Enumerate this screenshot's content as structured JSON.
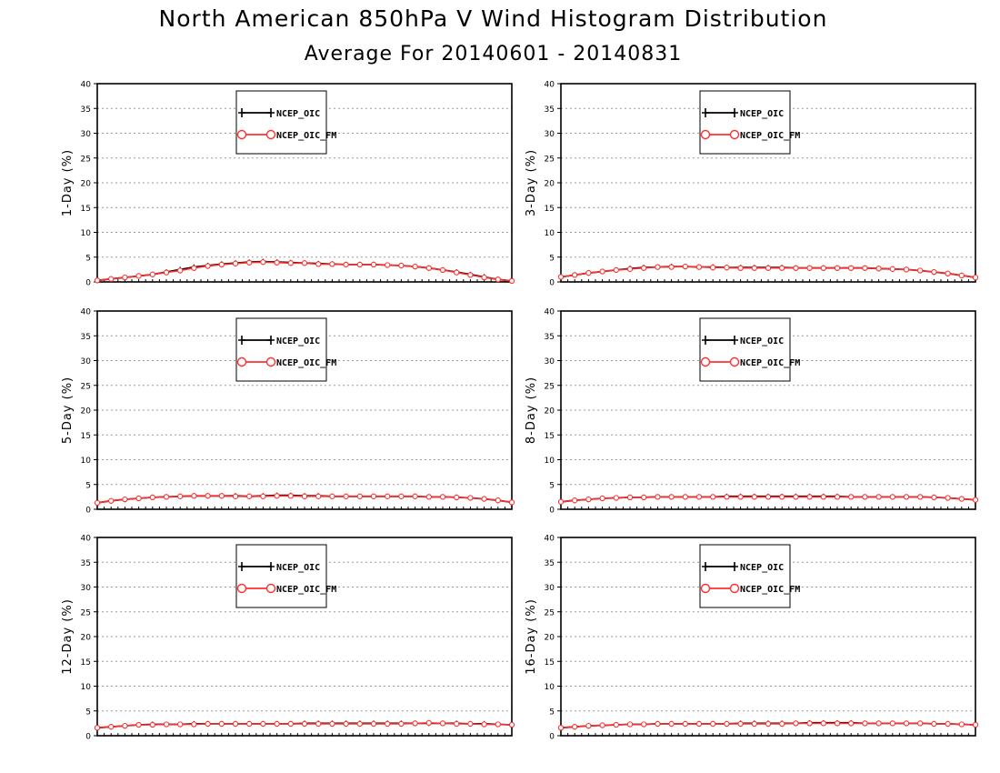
{
  "title": "North American 850hPa V Wind Histogram Distribution",
  "subtitle": "Average For 20140601 - 20140831",
  "colors": {
    "series1": "#000000",
    "series2": "#ff3030",
    "grid": "#9a9a9a"
  },
  "chart_data": [
    {
      "type": "line",
      "ylabel": "1-Day (%)",
      "ylim": [
        0,
        40
      ],
      "yticks": [
        "0",
        "5",
        "10",
        "15",
        "20",
        "25",
        "30",
        "35",
        "40"
      ],
      "grid": true,
      "legend": "top-center",
      "series": [
        {
          "name": "NCEP_OIC",
          "marker": "plus",
          "values": [
            0.3,
            0.6,
            0.9,
            1.2,
            1.5,
            2.0,
            2.5,
            3.0,
            3.3,
            3.6,
            3.8,
            4.0,
            4.1,
            4.0,
            3.9,
            3.8,
            3.7,
            3.6,
            3.5,
            3.5,
            3.5,
            3.4,
            3.3,
            3.1,
            2.8,
            2.4,
            2.0,
            1.5,
            1.0,
            0.5,
            0.2
          ]
        },
        {
          "name": "NCEP_OIC_FM",
          "marker": "circle",
          "values": [
            0.3,
            0.6,
            0.9,
            1.2,
            1.5,
            1.9,
            2.3,
            2.8,
            3.2,
            3.5,
            3.7,
            3.9,
            4.0,
            3.9,
            3.8,
            3.8,
            3.6,
            3.6,
            3.5,
            3.5,
            3.5,
            3.4,
            3.3,
            3.1,
            2.8,
            2.4,
            1.9,
            1.4,
            0.9,
            0.5,
            0.2
          ]
        }
      ]
    },
    {
      "type": "line",
      "ylabel": "3-Day (%)",
      "ylim": [
        0,
        40
      ],
      "yticks": [
        "0",
        "5",
        "10",
        "15",
        "20",
        "25",
        "30",
        "35",
        "40"
      ],
      "grid": true,
      "legend": "top-center",
      "series": [
        {
          "name": "NCEP_OIC",
          "marker": "plus",
          "values": [
            1.0,
            1.4,
            1.8,
            2.1,
            2.4,
            2.7,
            2.9,
            3.0,
            3.1,
            3.1,
            3.0,
            3.0,
            2.9,
            2.9,
            2.9,
            2.9,
            2.9,
            2.8,
            2.8,
            2.8,
            2.8,
            2.8,
            2.8,
            2.7,
            2.6,
            2.5,
            2.3,
            2.0,
            1.7,
            1.3,
            0.9
          ]
        },
        {
          "name": "NCEP_OIC_FM",
          "marker": "circle",
          "values": [
            1.0,
            1.4,
            1.8,
            2.1,
            2.4,
            2.6,
            2.8,
            3.0,
            3.0,
            3.1,
            3.0,
            2.9,
            2.9,
            2.8,
            2.8,
            2.8,
            2.8,
            2.8,
            2.8,
            2.8,
            2.8,
            2.8,
            2.8,
            2.7,
            2.6,
            2.5,
            2.3,
            2.0,
            1.7,
            1.3,
            0.9
          ]
        }
      ]
    },
    {
      "type": "line",
      "ylabel": "5-Day (%)",
      "ylim": [
        0,
        40
      ],
      "yticks": [
        "0",
        "5",
        "10",
        "15",
        "20",
        "25",
        "30",
        "35",
        "40"
      ],
      "grid": true,
      "legend": "top-center",
      "series": [
        {
          "name": "NCEP_OIC",
          "marker": "plus",
          "values": [
            1.3,
            1.7,
            2.0,
            2.2,
            2.4,
            2.5,
            2.6,
            2.7,
            2.7,
            2.7,
            2.7,
            2.6,
            2.7,
            2.8,
            2.8,
            2.7,
            2.7,
            2.6,
            2.6,
            2.6,
            2.6,
            2.6,
            2.6,
            2.6,
            2.5,
            2.5,
            2.4,
            2.3,
            2.1,
            1.8,
            1.4
          ]
        },
        {
          "name": "NCEP_OIC_FM",
          "marker": "circle",
          "values": [
            1.3,
            1.7,
            2.0,
            2.2,
            2.4,
            2.5,
            2.6,
            2.7,
            2.7,
            2.7,
            2.6,
            2.6,
            2.6,
            2.7,
            2.7,
            2.6,
            2.6,
            2.6,
            2.6,
            2.6,
            2.6,
            2.6,
            2.6,
            2.6,
            2.5,
            2.5,
            2.4,
            2.3,
            2.1,
            1.8,
            1.4
          ]
        }
      ]
    },
    {
      "type": "line",
      "ylabel": "8-Day (%)",
      "ylim": [
        0,
        40
      ],
      "yticks": [
        "0",
        "5",
        "10",
        "15",
        "20",
        "25",
        "30",
        "35",
        "40"
      ],
      "grid": true,
      "legend": "top-center",
      "series": [
        {
          "name": "NCEP_OIC",
          "marker": "plus",
          "values": [
            1.5,
            1.8,
            2.0,
            2.2,
            2.3,
            2.4,
            2.4,
            2.5,
            2.5,
            2.5,
            2.5,
            2.5,
            2.6,
            2.6,
            2.6,
            2.6,
            2.6,
            2.6,
            2.6,
            2.6,
            2.6,
            2.5,
            2.5,
            2.5,
            2.5,
            2.5,
            2.5,
            2.4,
            2.3,
            2.1,
            1.9
          ]
        },
        {
          "name": "NCEP_OIC_FM",
          "marker": "circle",
          "values": [
            1.5,
            1.8,
            2.0,
            2.2,
            2.3,
            2.4,
            2.4,
            2.5,
            2.5,
            2.5,
            2.5,
            2.5,
            2.5,
            2.5,
            2.5,
            2.5,
            2.5,
            2.5,
            2.5,
            2.5,
            2.5,
            2.5,
            2.5,
            2.5,
            2.5,
            2.5,
            2.5,
            2.4,
            2.3,
            2.1,
            1.9
          ]
        }
      ]
    },
    {
      "type": "line",
      "ylabel": "12-Day (%)",
      "ylim": [
        0,
        40
      ],
      "yticks": [
        "0",
        "5",
        "10",
        "15",
        "20",
        "25",
        "30",
        "35",
        "40"
      ],
      "grid": true,
      "legend": "top-center",
      "series": [
        {
          "name": "NCEP_OIC",
          "marker": "plus",
          "values": [
            1.6,
            1.8,
            2.0,
            2.2,
            2.3,
            2.3,
            2.3,
            2.4,
            2.4,
            2.4,
            2.4,
            2.4,
            2.4,
            2.4,
            2.4,
            2.5,
            2.5,
            2.5,
            2.5,
            2.5,
            2.5,
            2.5,
            2.5,
            2.5,
            2.5,
            2.5,
            2.5,
            2.4,
            2.4,
            2.3,
            2.2
          ]
        },
        {
          "name": "NCEP_OIC_FM",
          "marker": "circle",
          "values": [
            1.6,
            1.8,
            2.0,
            2.2,
            2.2,
            2.3,
            2.3,
            2.3,
            2.4,
            2.4,
            2.4,
            2.4,
            2.4,
            2.4,
            2.4,
            2.4,
            2.4,
            2.4,
            2.4,
            2.4,
            2.4,
            2.4,
            2.4,
            2.5,
            2.6,
            2.5,
            2.4,
            2.4,
            2.3,
            2.3,
            2.2
          ]
        }
      ]
    },
    {
      "type": "line",
      "ylabel": "16-Day (%)",
      "ylim": [
        0,
        40
      ],
      "yticks": [
        "0",
        "5",
        "10",
        "15",
        "20",
        "25",
        "30",
        "35",
        "40"
      ],
      "grid": true,
      "legend": "top-center",
      "series": [
        {
          "name": "NCEP_OIC",
          "marker": "plus",
          "values": [
            1.6,
            1.8,
            2.0,
            2.1,
            2.2,
            2.3,
            2.3,
            2.4,
            2.4,
            2.4,
            2.4,
            2.4,
            2.4,
            2.5,
            2.5,
            2.5,
            2.5,
            2.5,
            2.6,
            2.6,
            2.6,
            2.6,
            2.5,
            2.5,
            2.5,
            2.5,
            2.5,
            2.4,
            2.4,
            2.3,
            2.2
          ]
        },
        {
          "name": "NCEP_OIC_FM",
          "marker": "circle",
          "values": [
            1.6,
            1.8,
            2.0,
            2.1,
            2.2,
            2.3,
            2.3,
            2.4,
            2.4,
            2.4,
            2.4,
            2.4,
            2.4,
            2.4,
            2.4,
            2.4,
            2.4,
            2.5,
            2.5,
            2.5,
            2.5,
            2.5,
            2.5,
            2.5,
            2.5,
            2.5,
            2.5,
            2.4,
            2.4,
            2.3,
            2.2
          ]
        }
      ]
    }
  ]
}
